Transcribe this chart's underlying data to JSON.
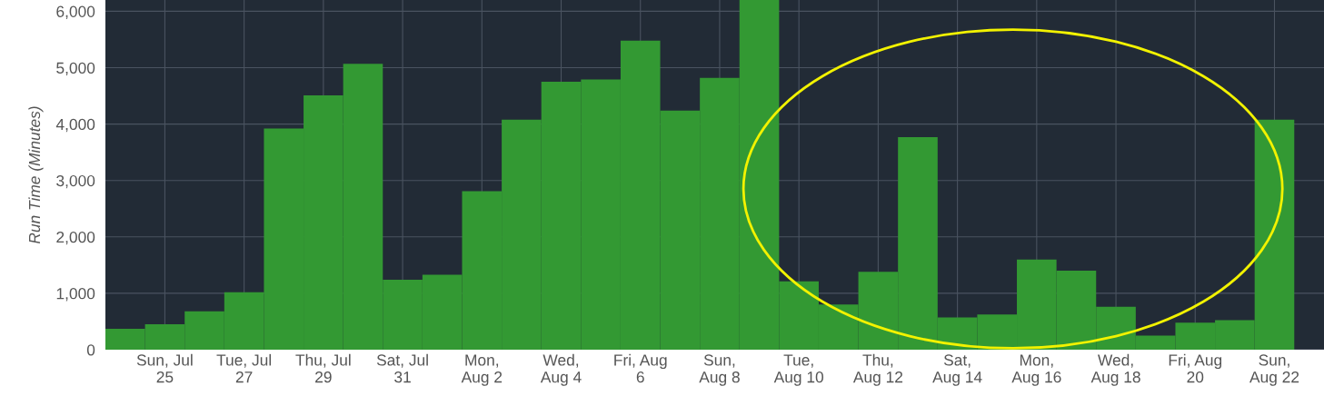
{
  "chart_data": {
    "type": "bar",
    "ylabel": "Run Time (Minutes)",
    "categories": [
      null,
      "Sun, Jul\n25",
      null,
      "Tue, Jul\n27",
      null,
      "Thu, Jul\n29",
      null,
      "Sat, Jul\n31",
      null,
      "Mon,\nAug 2",
      null,
      "Wed,\nAug 4",
      null,
      "Fri, Aug\n6",
      null,
      "Sun,\nAug 8",
      null,
      "Tue,\nAug 10",
      null,
      "Thu,\nAug 12",
      null,
      "Sat,\nAug 14",
      null,
      "Mon,\nAug 16",
      null,
      "Wed,\nAug 18",
      null,
      "Fri, Aug\n20",
      null,
      "Sun,\nAug 22"
    ],
    "values": [
      370,
      450,
      680,
      1020,
      3920,
      4510,
      5070,
      1240,
      1330,
      2810,
      4080,
      4750,
      4790,
      5480,
      4240,
      4820,
      6200,
      1210,
      800,
      1380,
      3770,
      570,
      625,
      1600,
      1400,
      760,
      250,
      480,
      525,
      4080
    ],
    "color": "#339933",
    "ylim": [
      0,
      6200
    ],
    "yticks": [
      0,
      {
        "value": 1000,
        "label": "1,000"
      },
      {
        "value": 2000,
        "label": "2,000"
      },
      {
        "value": 3000,
        "label": "3,000"
      },
      {
        "value": 4000,
        "label": "4,000"
      },
      {
        "value": 5000,
        "label": "5,000"
      },
      {
        "value": 6000,
        "label": "6,000"
      }
    ],
    "grid": true
  }
}
